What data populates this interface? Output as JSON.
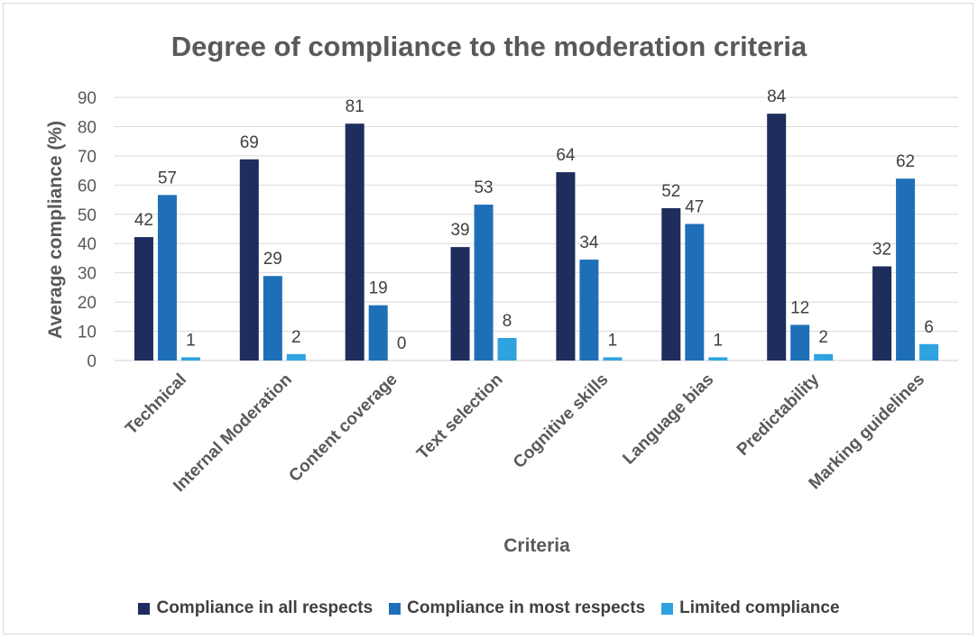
{
  "chart_data": {
    "type": "bar",
    "title": "Degree of compliance to the moderation criteria",
    "xlabel": "Criteria",
    "ylabel": "Average compliance (%)",
    "ylim": [
      0,
      90
    ],
    "yticks": [
      0,
      10,
      20,
      30,
      40,
      50,
      60,
      70,
      80,
      90
    ],
    "grid": true,
    "legend_position": "bottom",
    "categories": [
      "Technical",
      "Internal Moderation",
      "Content coverage",
      "Text selection",
      "Cognitive skills",
      "Language bias",
      "Predictability",
      "Marking guidelines"
    ],
    "series": [
      {
        "name": "Compliance in all respects",
        "color": "#1f2d5c",
        "values": [
          42,
          69,
          81,
          39,
          64,
          52,
          84,
          32
        ],
        "bar_values": [
          42.2,
          68.8,
          81.0,
          38.8,
          64.4,
          52.1,
          84.4,
          32.2
        ]
      },
      {
        "name": "Compliance in most respects",
        "color": "#1f6fb8",
        "values": [
          57,
          29,
          19,
          53,
          34,
          47,
          12,
          62
        ],
        "bar_values": [
          56.6,
          28.9,
          18.9,
          53.3,
          34.5,
          46.7,
          12.2,
          62.2
        ]
      },
      {
        "name": "Limited compliance",
        "color": "#2fa3e0",
        "values": [
          1,
          2,
          0,
          8,
          1,
          1,
          2,
          6
        ],
        "bar_values": [
          1.1,
          2.2,
          0,
          7.7,
          1.1,
          1.1,
          2.2,
          5.6
        ]
      }
    ]
  }
}
